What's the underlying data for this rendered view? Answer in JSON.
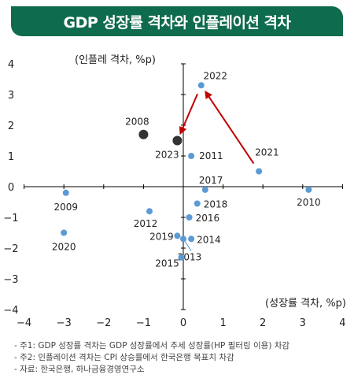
{
  "title": "GDP 성장률 격차와 인플레이션 격차",
  "chart_data": {
    "type": "scatter",
    "xlabel": "(성장률 격차, %p)",
    "ylabel": "(인플레 격차, %p)",
    "xlim": [
      -4,
      4
    ],
    "ylim": [
      -4,
      4
    ],
    "xticks": [
      "−4",
      "−3",
      "−2",
      "−1",
      "0",
      "1",
      "2",
      "3",
      "4"
    ],
    "yticks": [
      "4",
      "3",
      "2",
      "1",
      "0",
      "−1",
      "−2",
      "−3",
      "−4"
    ],
    "points": [
      {
        "label": "2022",
        "x": 0.45,
        "y": 3.3,
        "highlight": false
      },
      {
        "label": "2008",
        "x": -1.0,
        "y": 1.7,
        "highlight": true
      },
      {
        "label": "2023",
        "x": -0.15,
        "y": 1.5,
        "highlight": true
      },
      {
        "label": "2011",
        "x": 0.2,
        "y": 1.0,
        "highlight": false
      },
      {
        "label": "2021",
        "x": 1.9,
        "y": 0.5,
        "highlight": false
      },
      {
        "label": "2017",
        "x": 0.55,
        "y": -0.1,
        "highlight": false
      },
      {
        "label": "2010",
        "x": 3.15,
        "y": -0.1,
        "highlight": false
      },
      {
        "label": "2009",
        "x": -2.95,
        "y": -0.2,
        "highlight": false
      },
      {
        "label": "2018",
        "x": 0.35,
        "y": -0.55,
        "highlight": false
      },
      {
        "label": "2012",
        "x": -0.85,
        "y": -0.8,
        "highlight": false
      },
      {
        "label": "2016",
        "x": 0.15,
        "y": -1.0,
        "highlight": false
      },
      {
        "label": "2020",
        "x": -3.0,
        "y": -1.5,
        "highlight": false
      },
      {
        "label": "2019",
        "x": -0.15,
        "y": -1.6,
        "highlight": false
      },
      {
        "label": "2014",
        "x": 0.2,
        "y": -1.7,
        "highlight": false
      },
      {
        "label": "2013",
        "x": 0.0,
        "y": -1.7,
        "highlight": false
      },
      {
        "label": "2015",
        "x": -0.05,
        "y": -2.3,
        "highlight": false
      }
    ],
    "arrows": [
      {
        "from": "2021",
        "to": "2022"
      },
      {
        "from": "2022",
        "to": "2023"
      }
    ],
    "colors": {
      "point": "#5b9bd5",
      "highlight": "#333333",
      "arrow": "#c00000",
      "axis": "#000000"
    }
  },
  "notes": [
    "- 주1: GDP 성장률 격차는 GDP 성장률에서 추세 성장률(HP 필터링 이용) 차감",
    "- 주2: 인플레이션 격차는 CPI 상승률에서 한국은행 목표치 차감",
    "- 자료: 한국은행, 하나금융경영연구소"
  ]
}
